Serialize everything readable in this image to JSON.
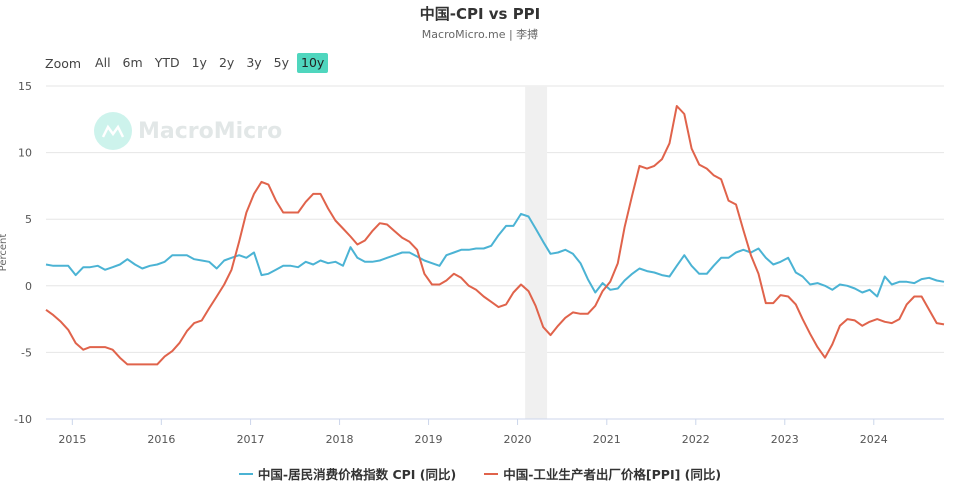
{
  "header": {
    "title": "中国-CPI vs PPI",
    "subtitle": "MacroMicro.me | 李搏"
  },
  "zoom": {
    "label": "Zoom",
    "buttons": [
      {
        "label": "All",
        "active": false
      },
      {
        "label": "6m",
        "active": false
      },
      {
        "label": "YTD",
        "active": false
      },
      {
        "label": "1y",
        "active": false
      },
      {
        "label": "2y",
        "active": false
      },
      {
        "label": "3y",
        "active": false
      },
      {
        "label": "5y",
        "active": false
      },
      {
        "label": "10y",
        "active": true
      }
    ],
    "active_color": "#4fd6be"
  },
  "watermark": {
    "text": "MacroMicro",
    "icon": "macromicro-logo-icon"
  },
  "chart_data": {
    "type": "line",
    "ylabel": "Percent",
    "ylim": [
      -10,
      15
    ],
    "yticks": [
      15,
      10,
      5,
      0,
      -5,
      -10
    ],
    "xlim": [
      "2014-09-15",
      "2024-10-15"
    ],
    "xticks": [
      "2015",
      "2016",
      "2017",
      "2018",
      "2019",
      "2020",
      "2021",
      "2022",
      "2023",
      "2024"
    ],
    "shaded_region": [
      "2020-02-01",
      "2020-05-01"
    ],
    "legend_position": "bottom",
    "grid": true,
    "series": [
      {
        "name": "中国-居民消费价格指数 CPI (同比)",
        "color": "#4bb3d4",
        "points": [
          [
            "2014-09",
            1.6
          ],
          [
            "2014-10",
            1.5
          ],
          [
            "2014-11",
            1.5
          ],
          [
            "2014-12",
            1.5
          ],
          [
            "2015-01",
            0.8
          ],
          [
            "2015-02",
            1.4
          ],
          [
            "2015-03",
            1.4
          ],
          [
            "2015-04",
            1.5
          ],
          [
            "2015-05",
            1.2
          ],
          [
            "2015-06",
            1.4
          ],
          [
            "2015-07",
            1.6
          ],
          [
            "2015-08",
            2.0
          ],
          [
            "2015-09",
            1.6
          ],
          [
            "2015-10",
            1.3
          ],
          [
            "2015-11",
            1.5
          ],
          [
            "2015-12",
            1.6
          ],
          [
            "2016-01",
            1.8
          ],
          [
            "2016-02",
            2.3
          ],
          [
            "2016-03",
            2.3
          ],
          [
            "2016-04",
            2.3
          ],
          [
            "2016-05",
            2.0
          ],
          [
            "2016-06",
            1.9
          ],
          [
            "2016-07",
            1.8
          ],
          [
            "2016-08",
            1.3
          ],
          [
            "2016-09",
            1.9
          ],
          [
            "2016-10",
            2.1
          ],
          [
            "2016-11",
            2.3
          ],
          [
            "2016-12",
            2.1
          ],
          [
            "2017-01",
            2.5
          ],
          [
            "2017-02",
            0.8
          ],
          [
            "2017-03",
            0.9
          ],
          [
            "2017-04",
            1.2
          ],
          [
            "2017-05",
            1.5
          ],
          [
            "2017-06",
            1.5
          ],
          [
            "2017-07",
            1.4
          ],
          [
            "2017-08",
            1.8
          ],
          [
            "2017-09",
            1.6
          ],
          [
            "2017-10",
            1.9
          ],
          [
            "2017-11",
            1.7
          ],
          [
            "2017-12",
            1.8
          ],
          [
            "2018-01",
            1.5
          ],
          [
            "2018-02",
            2.9
          ],
          [
            "2018-03",
            2.1
          ],
          [
            "2018-04",
            1.8
          ],
          [
            "2018-05",
            1.8
          ],
          [
            "2018-06",
            1.9
          ],
          [
            "2018-07",
            2.1
          ],
          [
            "2018-08",
            2.3
          ],
          [
            "2018-09",
            2.5
          ],
          [
            "2018-10",
            2.5
          ],
          [
            "2018-11",
            2.2
          ],
          [
            "2018-12",
            1.9
          ],
          [
            "2019-01",
            1.7
          ],
          [
            "2019-02",
            1.5
          ],
          [
            "2019-03",
            2.3
          ],
          [
            "2019-04",
            2.5
          ],
          [
            "2019-05",
            2.7
          ],
          [
            "2019-06",
            2.7
          ],
          [
            "2019-07",
            2.8
          ],
          [
            "2019-08",
            2.8
          ],
          [
            "2019-09",
            3.0
          ],
          [
            "2019-10",
            3.8
          ],
          [
            "2019-11",
            4.5
          ],
          [
            "2019-12",
            4.5
          ],
          [
            "2020-01",
            5.4
          ],
          [
            "2020-02",
            5.2
          ],
          [
            "2020-03",
            4.3
          ],
          [
            "2020-04",
            3.3
          ],
          [
            "2020-05",
            2.4
          ],
          [
            "2020-06",
            2.5
          ],
          [
            "2020-07",
            2.7
          ],
          [
            "2020-08",
            2.4
          ],
          [
            "2020-09",
            1.7
          ],
          [
            "2020-10",
            0.5
          ],
          [
            "2020-11",
            -0.5
          ],
          [
            "2020-12",
            0.2
          ],
          [
            "2021-01",
            -0.3
          ],
          [
            "2021-02",
            -0.2
          ],
          [
            "2021-03",
            0.4
          ],
          [
            "2021-04",
            0.9
          ],
          [
            "2021-05",
            1.3
          ],
          [
            "2021-06",
            1.1
          ],
          [
            "2021-07",
            1.0
          ],
          [
            "2021-08",
            0.8
          ],
          [
            "2021-09",
            0.7
          ],
          [
            "2021-10",
            1.5
          ],
          [
            "2021-11",
            2.3
          ],
          [
            "2021-12",
            1.5
          ],
          [
            "2022-01",
            0.9
          ],
          [
            "2022-02",
            0.9
          ],
          [
            "2022-03",
            1.5
          ],
          [
            "2022-04",
            2.1
          ],
          [
            "2022-05",
            2.1
          ],
          [
            "2022-06",
            2.5
          ],
          [
            "2022-07",
            2.7
          ],
          [
            "2022-08",
            2.5
          ],
          [
            "2022-09",
            2.8
          ],
          [
            "2022-10",
            2.1
          ],
          [
            "2022-11",
            1.6
          ],
          [
            "2022-12",
            1.8
          ],
          [
            "2023-01",
            2.1
          ],
          [
            "2023-02",
            1.0
          ],
          [
            "2023-03",
            0.7
          ],
          [
            "2023-04",
            0.1
          ],
          [
            "2023-05",
            0.2
          ],
          [
            "2023-06",
            0.0
          ],
          [
            "2023-07",
            -0.3
          ],
          [
            "2023-08",
            0.1
          ],
          [
            "2023-09",
            0.0
          ],
          [
            "2023-10",
            -0.2
          ],
          [
            "2023-11",
            -0.5
          ],
          [
            "2023-12",
            -0.3
          ],
          [
            "2024-01",
            -0.8
          ],
          [
            "2024-02",
            0.7
          ],
          [
            "2024-03",
            0.1
          ],
          [
            "2024-04",
            0.3
          ],
          [
            "2024-05",
            0.3
          ],
          [
            "2024-06",
            0.2
          ],
          [
            "2024-07",
            0.5
          ],
          [
            "2024-08",
            0.6
          ],
          [
            "2024-09",
            0.4
          ],
          [
            "2024-10",
            0.3
          ]
        ]
      },
      {
        "name": "中国-工业生产者出厂价格[PPI] (同比)",
        "color": "#e0634b",
        "points": [
          [
            "2014-09",
            -1.8
          ],
          [
            "2014-10",
            -2.2
          ],
          [
            "2014-11",
            -2.7
          ],
          [
            "2014-12",
            -3.3
          ],
          [
            "2015-01",
            -4.3
          ],
          [
            "2015-02",
            -4.8
          ],
          [
            "2015-03",
            -4.6
          ],
          [
            "2015-04",
            -4.6
          ],
          [
            "2015-05",
            -4.6
          ],
          [
            "2015-06",
            -4.8
          ],
          [
            "2015-07",
            -5.4
          ],
          [
            "2015-08",
            -5.9
          ],
          [
            "2015-09",
            -5.9
          ],
          [
            "2015-10",
            -5.9
          ],
          [
            "2015-11",
            -5.9
          ],
          [
            "2015-12",
            -5.9
          ],
          [
            "2016-01",
            -5.3
          ],
          [
            "2016-02",
            -4.9
          ],
          [
            "2016-03",
            -4.3
          ],
          [
            "2016-04",
            -3.4
          ],
          [
            "2016-05",
            -2.8
          ],
          [
            "2016-06",
            -2.6
          ],
          [
            "2016-07",
            -1.7
          ],
          [
            "2016-08",
            -0.8
          ],
          [
            "2016-09",
            0.1
          ],
          [
            "2016-10",
            1.2
          ],
          [
            "2016-11",
            3.3
          ],
          [
            "2016-12",
            5.5
          ],
          [
            "2017-01",
            6.9
          ],
          [
            "2017-02",
            7.8
          ],
          [
            "2017-03",
            7.6
          ],
          [
            "2017-04",
            6.4
          ],
          [
            "2017-05",
            5.5
          ],
          [
            "2017-06",
            5.5
          ],
          [
            "2017-07",
            5.5
          ],
          [
            "2017-08",
            6.3
          ],
          [
            "2017-09",
            6.9
          ],
          [
            "2017-10",
            6.9
          ],
          [
            "2017-11",
            5.8
          ],
          [
            "2017-12",
            4.9
          ],
          [
            "2018-01",
            4.3
          ],
          [
            "2018-02",
            3.7
          ],
          [
            "2018-03",
            3.1
          ],
          [
            "2018-04",
            3.4
          ],
          [
            "2018-05",
            4.1
          ],
          [
            "2018-06",
            4.7
          ],
          [
            "2018-07",
            4.6
          ],
          [
            "2018-08",
            4.1
          ],
          [
            "2018-09",
            3.6
          ],
          [
            "2018-10",
            3.3
          ],
          [
            "2018-11",
            2.7
          ],
          [
            "2018-12",
            0.9
          ],
          [
            "2019-01",
            0.1
          ],
          [
            "2019-02",
            0.1
          ],
          [
            "2019-03",
            0.4
          ],
          [
            "2019-04",
            0.9
          ],
          [
            "2019-05",
            0.6
          ],
          [
            "2019-06",
            0.0
          ],
          [
            "2019-07",
            -0.3
          ],
          [
            "2019-08",
            -0.8
          ],
          [
            "2019-09",
            -1.2
          ],
          [
            "2019-10",
            -1.6
          ],
          [
            "2019-11",
            -1.4
          ],
          [
            "2019-12",
            -0.5
          ],
          [
            "2020-01",
            0.1
          ],
          [
            "2020-02",
            -0.4
          ],
          [
            "2020-03",
            -1.5
          ],
          [
            "2020-04",
            -3.1
          ],
          [
            "2020-05",
            -3.7
          ],
          [
            "2020-06",
            -3.0
          ],
          [
            "2020-07",
            -2.4
          ],
          [
            "2020-08",
            -2.0
          ],
          [
            "2020-09",
            -2.1
          ],
          [
            "2020-10",
            -2.1
          ],
          [
            "2020-11",
            -1.5
          ],
          [
            "2020-12",
            -0.4
          ],
          [
            "2021-01",
            0.3
          ],
          [
            "2021-02",
            1.7
          ],
          [
            "2021-03",
            4.4
          ],
          [
            "2021-04",
            6.8
          ],
          [
            "2021-05",
            9.0
          ],
          [
            "2021-06",
            8.8
          ],
          [
            "2021-07",
            9.0
          ],
          [
            "2021-08",
            9.5
          ],
          [
            "2021-09",
            10.7
          ],
          [
            "2021-10",
            13.5
          ],
          [
            "2021-11",
            12.9
          ],
          [
            "2021-12",
            10.3
          ],
          [
            "2022-01",
            9.1
          ],
          [
            "2022-02",
            8.8
          ],
          [
            "2022-03",
            8.3
          ],
          [
            "2022-04",
            8.0
          ],
          [
            "2022-05",
            6.4
          ],
          [
            "2022-06",
            6.1
          ],
          [
            "2022-07",
            4.2
          ],
          [
            "2022-08",
            2.3
          ],
          [
            "2022-09",
            0.9
          ],
          [
            "2022-10",
            -1.3
          ],
          [
            "2022-11",
            -1.3
          ],
          [
            "2022-12",
            -0.7
          ],
          [
            "2023-01",
            -0.8
          ],
          [
            "2023-02",
            -1.4
          ],
          [
            "2023-03",
            -2.5
          ],
          [
            "2023-04",
            -3.6
          ],
          [
            "2023-05",
            -4.6
          ],
          [
            "2023-06",
            -5.4
          ],
          [
            "2023-07",
            -4.4
          ],
          [
            "2023-08",
            -3.0
          ],
          [
            "2023-09",
            -2.5
          ],
          [
            "2023-10",
            -2.6
          ],
          [
            "2023-11",
            -3.0
          ],
          [
            "2023-12",
            -2.7
          ],
          [
            "2024-01",
            -2.5
          ],
          [
            "2024-02",
            -2.7
          ],
          [
            "2024-03",
            -2.8
          ],
          [
            "2024-04",
            -2.5
          ],
          [
            "2024-05",
            -1.4
          ],
          [
            "2024-06",
            -0.8
          ],
          [
            "2024-07",
            -0.8
          ],
          [
            "2024-08",
            -1.8
          ],
          [
            "2024-09",
            -2.8
          ],
          [
            "2024-10",
            -2.9
          ]
        ]
      }
    ]
  }
}
